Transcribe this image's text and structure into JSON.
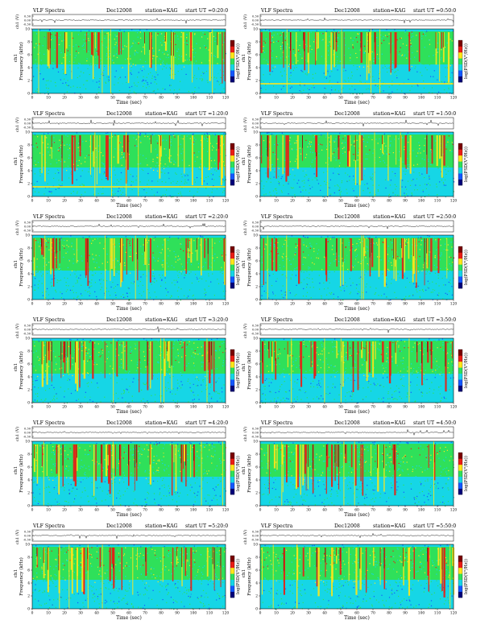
{
  "header": {
    "product": "VLF Spectra",
    "date": "Dec12008",
    "station": "station=KAG",
    "start_prefix": "start  UT  ="
  },
  "axis_labels": {
    "time": "Time  (sec)",
    "frequency": "Frequency  (kHz)",
    "ch1_short": "ch1",
    "ch1_volts": "ch1 (V)",
    "psd": "log(PSD(V²/Hz))"
  },
  "colors": {
    "dark_blue": "#00007a",
    "blue": "#1458ff",
    "cyan": "#16d6e6",
    "green": "#2fe05a",
    "yellow": "#ffe61a",
    "red": "#ea1d14",
    "dark_red": "#7a0000"
  },
  "chart_data": [
    {
      "type": "heatmap",
      "title": "VLF Spectra  Dec12008  station=KAG  start UT =0:20:0",
      "start_ut": "0:20:0",
      "xlabel": "Time  (sec)",
      "ylabel": "Frequency  (kHz)",
      "xlim": [
        0,
        120
      ],
      "ylim": [
        0,
        10
      ],
      "xticks": [
        0,
        10,
        20,
        30,
        40,
        50,
        60,
        70,
        80,
        90,
        100,
        110,
        120
      ],
      "yticks": [
        0,
        2,
        4,
        6,
        8,
        10
      ],
      "timeseries": {
        "label": "ch1 (V)",
        "ticks": [
          "0.30",
          "0.00",
          "-0.30"
        ]
      },
      "colorbar": {
        "label": "log(PSD(V²/Hz))"
      }
    },
    {
      "type": "heatmap",
      "title": "VLF Spectra  Dec12008  station=KAG  start UT =0:50:0",
      "start_ut": "0:50:0",
      "xlabel": "Time  (sec)",
      "ylabel": "Frequency  (kHz)",
      "xlim": [
        0,
        120
      ],
      "ylim": [
        0,
        10
      ],
      "xticks": [
        0,
        10,
        20,
        30,
        40,
        50,
        60,
        70,
        80,
        90,
        100,
        110,
        120
      ],
      "yticks": [
        0,
        2,
        4,
        6,
        8,
        10
      ],
      "timeseries": {
        "label": "ch1 (V)",
        "ticks": [
          "0.30",
          "0.00",
          "-0.30"
        ]
      },
      "colorbar": {
        "label": "log(PSD(V²/Hz))"
      }
    },
    {
      "type": "heatmap",
      "title": "VLF Spectra  Dec12008  station=KAG  start UT =1:20:0",
      "start_ut": "1:20:0",
      "xlabel": "Time  (sec)",
      "ylabel": "Frequency  (kHz)",
      "xlim": [
        0,
        120
      ],
      "ylim": [
        0,
        10
      ],
      "xticks": [
        0,
        10,
        20,
        30,
        40,
        50,
        60,
        70,
        80,
        90,
        100,
        110,
        120
      ],
      "yticks": [
        0,
        2,
        4,
        6,
        8,
        10
      ],
      "timeseries": {
        "label": "ch1 (V)",
        "ticks": [
          "0.30",
          "0.00",
          "-0.30"
        ]
      },
      "colorbar": {
        "label": "log(PSD(V²/Hz))"
      }
    },
    {
      "type": "heatmap",
      "title": "VLF Spectra  Dec12008  station=KAG  start UT =1:50:0",
      "start_ut": "1:50:0",
      "xlabel": "Time  (sec)",
      "ylabel": "Frequency  (kHz)",
      "xlim": [
        0,
        120
      ],
      "ylim": [
        0,
        10
      ],
      "xticks": [
        0,
        10,
        20,
        30,
        40,
        50,
        60,
        70,
        80,
        90,
        100,
        110,
        120
      ],
      "yticks": [
        0,
        2,
        4,
        6,
        8,
        10
      ],
      "timeseries": {
        "label": "ch1 (V)",
        "ticks": [
          "0.30",
          "0.00",
          "-0.30"
        ]
      },
      "colorbar": {
        "label": "log(PSD(V²/Hz))"
      }
    },
    {
      "type": "heatmap",
      "title": "VLF Spectra  Dec12008  station=KAG  start UT =2:20:0",
      "start_ut": "2:20:0",
      "xlabel": "Time  (sec)",
      "ylabel": "Frequency  (kHz)",
      "xlim": [
        0,
        120
      ],
      "ylim": [
        0,
        10
      ],
      "xticks": [
        0,
        10,
        20,
        30,
        40,
        50,
        60,
        70,
        80,
        90,
        100,
        110,
        120
      ],
      "yticks": [
        0,
        2,
        4,
        6,
        8,
        10
      ],
      "timeseries": {
        "label": "ch1 (V)",
        "ticks": [
          "0.30",
          "0.00",
          "-0.30"
        ]
      },
      "colorbar": {
        "label": "log(PSD(V²/Hz))"
      }
    },
    {
      "type": "heatmap",
      "title": "VLF Spectra  Dec12008  station=KAG  start UT =2:50:0",
      "start_ut": "2:50:0",
      "xlabel": "Time  (sec)",
      "ylabel": "Frequency  (kHz)",
      "xlim": [
        0,
        120
      ],
      "ylim": [
        0,
        10
      ],
      "xticks": [
        0,
        10,
        20,
        30,
        40,
        50,
        60,
        70,
        80,
        90,
        100,
        110,
        120
      ],
      "yticks": [
        0,
        2,
        4,
        6,
        8,
        10
      ],
      "timeseries": {
        "label": "ch1 (V)",
        "ticks": [
          "0.30",
          "0.00",
          "-0.30"
        ]
      },
      "colorbar": {
        "label": "log(PSD(V²/Hz))"
      }
    },
    {
      "type": "heatmap",
      "title": "VLF Spectra  Dec12008  station=KAG  start UT =3:20:0",
      "start_ut": "3:20:0",
      "xlabel": "Time  (sec)",
      "ylabel": "Frequency  (kHz)",
      "xlim": [
        0,
        120
      ],
      "ylim": [
        0,
        10
      ],
      "xticks": [
        0,
        10,
        20,
        30,
        40,
        50,
        60,
        70,
        80,
        90,
        100,
        110,
        120
      ],
      "yticks": [
        0,
        2,
        4,
        6,
        8,
        10
      ],
      "timeseries": {
        "label": "ch1 (V)",
        "ticks": [
          "0.30",
          "0.00",
          "-0.30"
        ]
      },
      "colorbar": {
        "label": "log(PSD(V²/Hz))"
      }
    },
    {
      "type": "heatmap",
      "title": "VLF Spectra  Dec12008  station=KAG  start UT =3:50:0",
      "start_ut": "3:50:0",
      "xlabel": "Time  (sec)",
      "ylabel": "Frequency  (kHz)",
      "xlim": [
        0,
        120
      ],
      "ylim": [
        0,
        10
      ],
      "xticks": [
        0,
        10,
        20,
        30,
        40,
        50,
        60,
        70,
        80,
        90,
        100,
        110,
        120
      ],
      "yticks": [
        0,
        2,
        4,
        6,
        8,
        10
      ],
      "timeseries": {
        "label": "ch1 (V)",
        "ticks": [
          "0.30",
          "0.00",
          "-0.30"
        ]
      },
      "colorbar": {
        "label": "log(PSD(V²/Hz))"
      }
    },
    {
      "type": "heatmap",
      "title": "VLF Spectra  Dec12008  station=KAG  start UT =4:20:0",
      "start_ut": "4:20:0",
      "xlabel": "Time  (sec)",
      "ylabel": "Frequency  (kHz)",
      "xlim": [
        0,
        120
      ],
      "ylim": [
        0,
        10
      ],
      "xticks": [
        0,
        10,
        20,
        30,
        40,
        50,
        60,
        70,
        80,
        90,
        100,
        110,
        120
      ],
      "yticks": [
        0,
        2,
        4,
        6,
        8,
        10
      ],
      "timeseries": {
        "label": "ch1 (V)",
        "ticks": [
          "0.30",
          "0.00",
          "-0.30"
        ]
      },
      "colorbar": {
        "label": "log(PSD(V²/Hz))"
      }
    },
    {
      "type": "heatmap",
      "title": "VLF Spectra  Dec12008  station=KAG  start UT =4:50:0",
      "start_ut": "4:50:0",
      "xlabel": "Time  (sec)",
      "ylabel": "Frequency  (kHz)",
      "xlim": [
        0,
        120
      ],
      "ylim": [
        0,
        10
      ],
      "xticks": [
        0,
        10,
        20,
        30,
        40,
        50,
        60,
        70,
        80,
        90,
        100,
        110,
        120
      ],
      "yticks": [
        0,
        2,
        4,
        6,
        8,
        10
      ],
      "timeseries": {
        "label": "ch1 (V)",
        "ticks": [
          "0.30",
          "0.00",
          "-0.30"
        ]
      },
      "colorbar": {
        "label": "log(PSD(V²/Hz))"
      }
    },
    {
      "type": "heatmap",
      "title": "VLF Spectra  Dec12008  station=KAG  start UT =5:20:0",
      "start_ut": "5:20:0",
      "xlabel": "Time  (sec)",
      "ylabel": "Frequency  (kHz)",
      "xlim": [
        0,
        120
      ],
      "ylim": [
        0,
        10
      ],
      "xticks": [
        0,
        10,
        20,
        30,
        40,
        50,
        60,
        70,
        80,
        90,
        100,
        110,
        120
      ],
      "yticks": [
        0,
        2,
        4,
        6,
        8,
        10
      ],
      "timeseries": {
        "label": "ch1 (V)",
        "ticks": [
          "0.30",
          "0.00",
          "-0.30"
        ]
      },
      "colorbar": {
        "label": "log(PSD(V²/Hz))"
      }
    },
    {
      "type": "heatmap",
      "title": "VLF Spectra  Dec12008  station=KAG  start UT =5:50:0",
      "start_ut": "5:50:0",
      "xlabel": "Time  (sec)",
      "ylabel": "Frequency  (kHz)",
      "xlim": [
        0,
        120
      ],
      "ylim": [
        0,
        10
      ],
      "xticks": [
        0,
        10,
        20,
        30,
        40,
        50,
        60,
        70,
        80,
        90,
        100,
        110,
        120
      ],
      "yticks": [
        0,
        2,
        4,
        6,
        8,
        10
      ],
      "timeseries": {
        "label": "ch1 (V)",
        "ticks": [
          "0.30",
          "0.00",
          "-0.30"
        ]
      },
      "colorbar": {
        "label": "log(PSD(V²/Hz))"
      }
    }
  ]
}
